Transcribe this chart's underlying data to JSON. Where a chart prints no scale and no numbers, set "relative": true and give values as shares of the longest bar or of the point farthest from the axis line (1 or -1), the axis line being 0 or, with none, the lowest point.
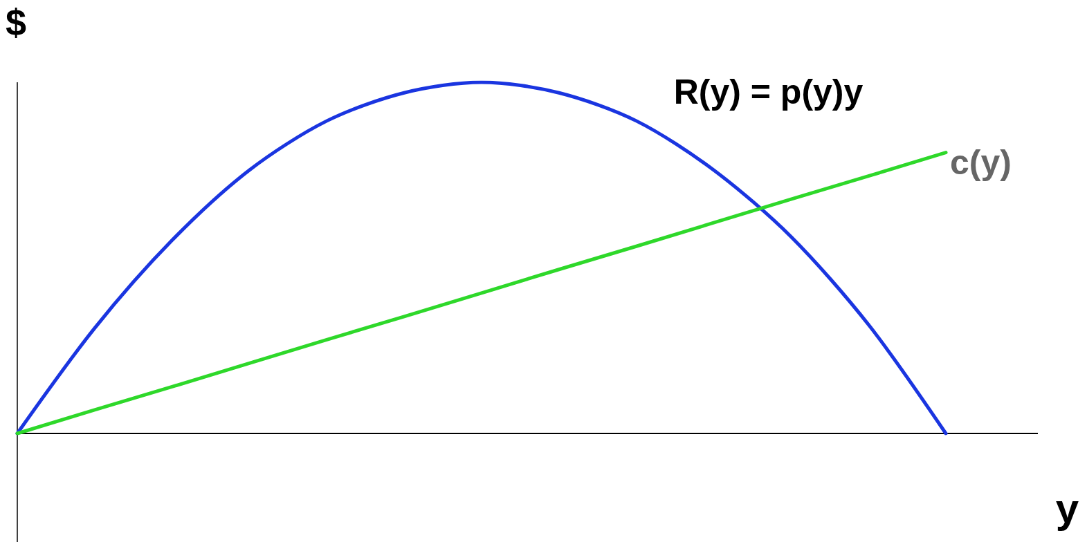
{
  "chart_data": {
    "type": "line",
    "relative": true,
    "xlabel": "y",
    "ylabel": "$",
    "categories": [
      null,
      null,
      null,
      null,
      null,
      null,
      null,
      null,
      null,
      null,
      null,
      null,
      null
    ],
    "series": [
      {
        "name": "R(y) = p(y)y",
        "color": "#1a35e0",
        "values": [
          0,
          0.3,
          0.55,
          0.75,
          0.89,
          0.97,
          1,
          0.97,
          0.89,
          0.75,
          0.56,
          0.31,
          0
        ]
      },
      {
        "name": "c(y)",
        "color": "#2ed82a",
        "values": [
          0,
          0.067,
          0.133,
          0.2,
          0.267,
          0.333,
          0.4,
          0.467,
          0.533,
          0.6,
          0.667,
          0.733,
          0.8
        ]
      }
    ],
    "marker": "none",
    "grid": false,
    "legend": false
  }
}
